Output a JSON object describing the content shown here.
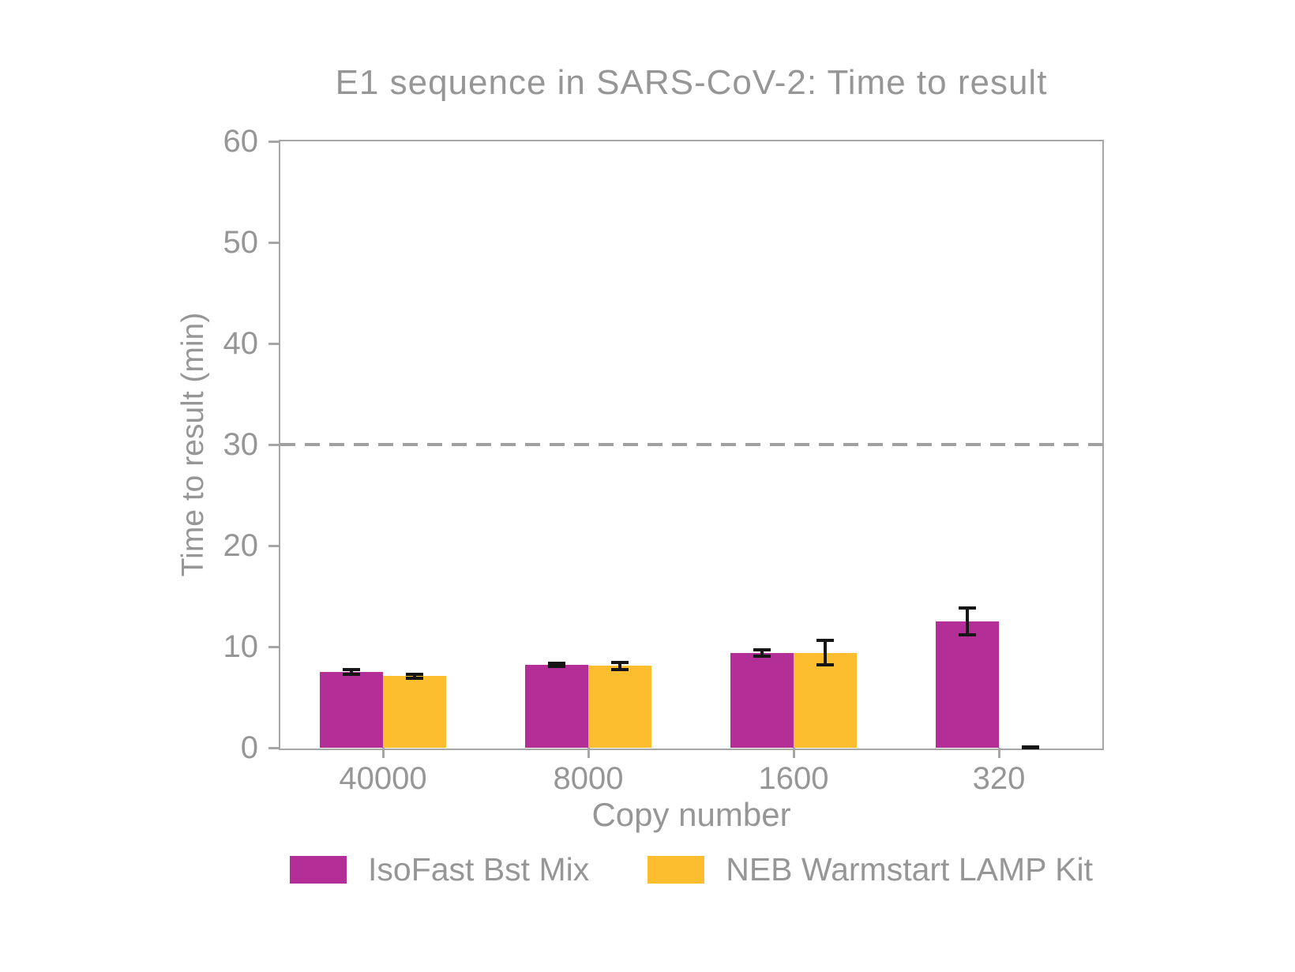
{
  "title": "E1 sequence in SARS-CoV-2: Time to result",
  "colors": {
    "isofast": "#b32e96",
    "neb": "#fcbe2e",
    "axis": "#a6a6a6",
    "text": "#969696",
    "error_bar": "#161616",
    "threshold_line": "#a0a0a0",
    "background": "#ffffff"
  },
  "chart_data": {
    "type": "bar",
    "title": "E1 sequence in SARS-CoV-2: Time to result",
    "xlabel": "Copy number",
    "ylabel": "Time to result (min)",
    "categories": [
      "40000",
      "8000",
      "1600",
      "320"
    ],
    "series": [
      {
        "name": "IsoFast Bst Mix",
        "color": "#b32e96",
        "values": [
          7.5,
          8.2,
          9.4,
          12.5
        ],
        "errors": [
          0.2,
          0.15,
          0.3,
          1.3
        ]
      },
      {
        "name": "NEB Warmstart LAMP Kit",
        "color": "#fcbe2e",
        "values": [
          7.1,
          8.1,
          9.4,
          0
        ],
        "errors": [
          0.2,
          0.35,
          1.2,
          0.05
        ]
      }
    ],
    "ylim": [
      0,
      60
    ],
    "yticks": [
      0,
      10,
      20,
      30,
      40,
      50,
      60
    ],
    "threshold_line": {
      "value": 30,
      "style": "dashed"
    },
    "grid": false,
    "legend_position": "bottom"
  },
  "legend": {
    "items": [
      {
        "label": "IsoFast Bst Mix",
        "color": "#b32e96"
      },
      {
        "label": "NEB Warmstart LAMP Kit",
        "color": "#fcbe2e"
      }
    ]
  }
}
